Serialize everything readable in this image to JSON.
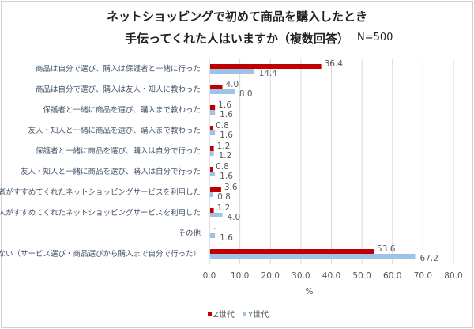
{
  "chart_data": {
    "type": "bar",
    "orientation": "horizontal",
    "title": [
      "ネットショッピングで初めて商品を購入したとき",
      "手伝ってくれた人はいますか（複数回答）"
    ],
    "annotation": "N=500",
    "categories": [
      "商品は自分で選び、購入は保護者と一緒に行った",
      "商品は自分で選び、購入は友人・知人に教わった",
      "保護者と一緒に商品を選び、購入まで教わった",
      "友人・知人と一緒に商品を選び、購入まで教わった",
      "保護者と一緒に商品を選び、購入は自分で行った",
      "友人・知人と一緒に商品を選び、購入は自分で行った",
      "保護者がすすめてくれたネットショッピングサービスを利用した",
      "友人・知人がすすめてくれたネットショッピングサービスを利用した",
      "その他",
      "いない（サービス選び・商品選びから購入まで自分で行った）"
    ],
    "series": [
      {
        "name": "Z世代",
        "color": "#c00000",
        "values": [
          36.4,
          4.0,
          1.6,
          0.8,
          1.2,
          0.8,
          3.6,
          1.2,
          null,
          53.6
        ],
        "labels": [
          "36.4",
          "4.0",
          "1.6",
          "0.8",
          "1.2",
          "0.8",
          "3.6",
          "1.2",
          "-",
          "53.6"
        ]
      },
      {
        "name": "Y世代",
        "color": "#9dc3e6",
        "values": [
          14.4,
          8.0,
          1.6,
          1.6,
          1.2,
          1.6,
          0.8,
          4.0,
          1.6,
          67.2
        ],
        "labels": [
          "14.4",
          "8.0",
          "1.6",
          "1.6",
          "1.2",
          "1.6",
          "0.8",
          "4.0",
          "1.6",
          "67.2"
        ]
      }
    ],
    "xlabel": "%",
    "ylabel": "",
    "xlim": [
      0,
      80
    ],
    "xticks": [
      "0.0",
      "10.0",
      "20.0",
      "30.0",
      "40.0",
      "50.0",
      "60.0",
      "70.0",
      "80.0"
    ],
    "grid": true,
    "legend": "bottom"
  }
}
